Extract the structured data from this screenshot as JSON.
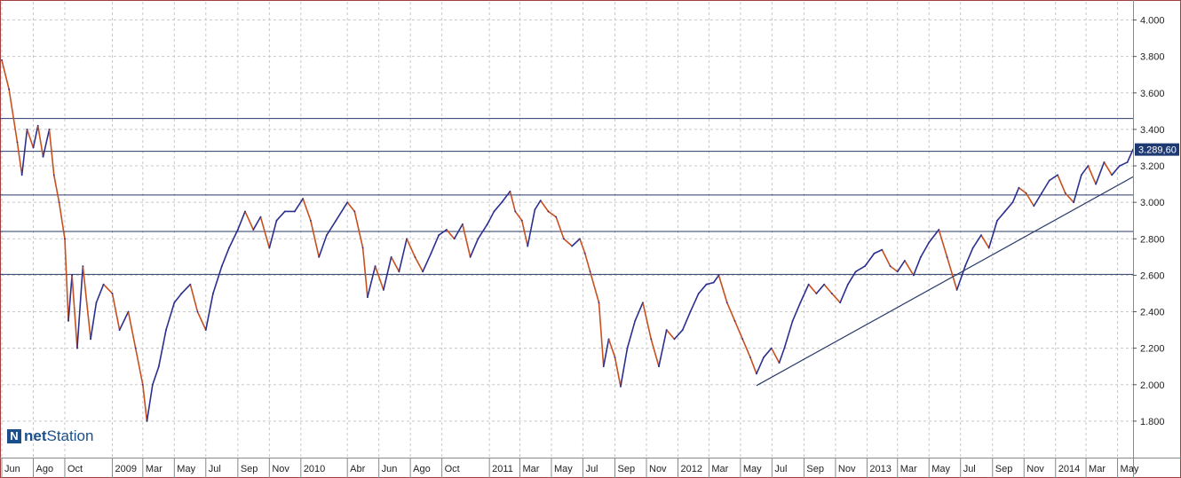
{
  "logo": {
    "mark": "N",
    "text_bold": "net",
    "text_regular": "Station"
  },
  "colors": {
    "price_up": "#2b2f8f",
    "price_down": "#c8501e",
    "level_line": "#2a3a6a",
    "trend_line": "#2a3a6a",
    "grid": "#c8c8c8",
    "border": "#a04040",
    "tag_bg": "#1f3a73",
    "tag_text": "#ffffff"
  },
  "chart_data": {
    "type": "line",
    "title": "",
    "xlabel": "",
    "ylabel": "",
    "x_range": [
      "2008-06-01",
      "2014-05-31"
    ],
    "ylim": [
      1600,
      4100
    ],
    "y_ticks": [
      1800,
      2000,
      2200,
      2400,
      2600,
      2800,
      3000,
      3200,
      3400,
      3600,
      3800,
      4000
    ],
    "y_tick_labels": [
      "1.800",
      "2.000",
      "2.200",
      "2.400",
      "2.600",
      "2.800",
      "3.000",
      "3.200",
      "3.400",
      "3.600",
      "3.800",
      "4.000"
    ],
    "x_ticks": [
      {
        "date": "2008-06-01",
        "label": "Jun"
      },
      {
        "date": "2008-08-01",
        "label": "Ago"
      },
      {
        "date": "2008-10-01",
        "label": "Oct"
      },
      {
        "date": "2009-01-01",
        "label": "2009"
      },
      {
        "date": "2009-03-01",
        "label": "Mar"
      },
      {
        "date": "2009-05-01",
        "label": "May"
      },
      {
        "date": "2009-07-01",
        "label": "Jul"
      },
      {
        "date": "2009-09-01",
        "label": "Sep"
      },
      {
        "date": "2009-11-01",
        "label": "Nov"
      },
      {
        "date": "2010-01-01",
        "label": "2010"
      },
      {
        "date": "2010-04-01",
        "label": "Abr"
      },
      {
        "date": "2010-06-01",
        "label": "Jun"
      },
      {
        "date": "2010-08-01",
        "label": "Ago"
      },
      {
        "date": "2010-10-01",
        "label": "Oct"
      },
      {
        "date": "2011-01-01",
        "label": "2011"
      },
      {
        "date": "2011-03-01",
        "label": "Mar"
      },
      {
        "date": "2011-05-01",
        "label": "May"
      },
      {
        "date": "2011-07-01",
        "label": "Jul"
      },
      {
        "date": "2011-09-01",
        "label": "Sep"
      },
      {
        "date": "2011-11-01",
        "label": "Nov"
      },
      {
        "date": "2012-01-01",
        "label": "2012"
      },
      {
        "date": "2012-03-01",
        "label": "Mar"
      },
      {
        "date": "2012-05-01",
        "label": "May"
      },
      {
        "date": "2012-07-01",
        "label": "Jul"
      },
      {
        "date": "2012-09-01",
        "label": "Sep"
      },
      {
        "date": "2012-11-01",
        "label": "Nov"
      },
      {
        "date": "2013-01-01",
        "label": "2013"
      },
      {
        "date": "2013-03-01",
        "label": "Mar"
      },
      {
        "date": "2013-05-01",
        "label": "May"
      },
      {
        "date": "2013-07-01",
        "label": "Jul"
      },
      {
        "date": "2013-09-01",
        "label": "Sep"
      },
      {
        "date": "2013-11-01",
        "label": "Nov"
      },
      {
        "date": "2014-01-01",
        "label": "2014"
      },
      {
        "date": "2014-03-01",
        "label": "Mar"
      },
      {
        "date": "2014-05-01",
        "label": "May"
      }
    ],
    "grid": true,
    "horizontal_levels": [
      3460,
      3280,
      3040,
      2840,
      2605
    ],
    "trend_line": {
      "start": [
        "2012-06-01",
        1995
      ],
      "end": [
        "2014-05-31",
        3140
      ]
    },
    "last_value": 3289.6,
    "last_value_label": "3.289,60",
    "series": [
      {
        "points": [
          [
            "2008-06-01",
            3780
          ],
          [
            "2008-06-15",
            3620
          ],
          [
            "2008-07-01",
            3330
          ],
          [
            "2008-07-10",
            3150
          ],
          [
            "2008-07-20",
            3400
          ],
          [
            "2008-08-01",
            3300
          ],
          [
            "2008-08-10",
            3420
          ],
          [
            "2008-08-20",
            3250
          ],
          [
            "2008-09-01",
            3400
          ],
          [
            "2008-09-10",
            3150
          ],
          [
            "2008-09-20",
            3000
          ],
          [
            "2008-10-01",
            2800
          ],
          [
            "2008-10-08",
            2350
          ],
          [
            "2008-10-15",
            2600
          ],
          [
            "2008-10-25",
            2200
          ],
          [
            "2008-11-05",
            2650
          ],
          [
            "2008-11-20",
            2250
          ],
          [
            "2008-12-01",
            2450
          ],
          [
            "2008-12-15",
            2550
          ],
          [
            "2009-01-01",
            2500
          ],
          [
            "2009-01-15",
            2300
          ],
          [
            "2009-02-01",
            2400
          ],
          [
            "2009-02-15",
            2200
          ],
          [
            "2009-03-01",
            2000
          ],
          [
            "2009-03-09",
            1800
          ],
          [
            "2009-03-20",
            2000
          ],
          [
            "2009-04-01",
            2100
          ],
          [
            "2009-04-15",
            2300
          ],
          [
            "2009-05-01",
            2450
          ],
          [
            "2009-05-15",
            2500
          ],
          [
            "2009-06-01",
            2550
          ],
          [
            "2009-06-15",
            2400
          ],
          [
            "2009-07-01",
            2300
          ],
          [
            "2009-07-15",
            2500
          ],
          [
            "2009-08-01",
            2650
          ],
          [
            "2009-08-15",
            2750
          ],
          [
            "2009-09-01",
            2850
          ],
          [
            "2009-09-15",
            2950
          ],
          [
            "2009-10-01",
            2850
          ],
          [
            "2009-10-15",
            2920
          ],
          [
            "2009-11-01",
            2750
          ],
          [
            "2009-11-15",
            2900
          ],
          [
            "2009-12-01",
            2950
          ],
          [
            "2009-12-20",
            2950
          ],
          [
            "2010-01-05",
            3020
          ],
          [
            "2010-01-20",
            2900
          ],
          [
            "2010-02-05",
            2700
          ],
          [
            "2010-02-20",
            2820
          ],
          [
            "2010-03-10",
            2900
          ],
          [
            "2010-04-01",
            3000
          ],
          [
            "2010-04-15",
            2950
          ],
          [
            "2010-05-01",
            2750
          ],
          [
            "2010-05-10",
            2480
          ],
          [
            "2010-05-25",
            2650
          ],
          [
            "2010-06-10",
            2520
          ],
          [
            "2010-06-25",
            2700
          ],
          [
            "2010-07-10",
            2620
          ],
          [
            "2010-07-25",
            2800
          ],
          [
            "2010-08-10",
            2700
          ],
          [
            "2010-08-25",
            2620
          ],
          [
            "2010-09-10",
            2720
          ],
          [
            "2010-09-25",
            2820
          ],
          [
            "2010-10-10",
            2850
          ],
          [
            "2010-10-25",
            2800
          ],
          [
            "2010-11-10",
            2880
          ],
          [
            "2010-11-25",
            2700
          ],
          [
            "2010-12-10",
            2800
          ],
          [
            "2010-12-28",
            2880
          ],
          [
            "2011-01-10",
            2950
          ],
          [
            "2011-01-25",
            3000
          ],
          [
            "2011-02-10",
            3060
          ],
          [
            "2011-02-20",
            2950
          ],
          [
            "2011-03-05",
            2900
          ],
          [
            "2011-03-16",
            2760
          ],
          [
            "2011-03-30",
            2960
          ],
          [
            "2011-04-10",
            3010
          ],
          [
            "2011-04-25",
            2950
          ],
          [
            "2011-05-10",
            2920
          ],
          [
            "2011-05-25",
            2800
          ],
          [
            "2011-06-10",
            2760
          ],
          [
            "2011-06-25",
            2800
          ],
          [
            "2011-07-05",
            2720
          ],
          [
            "2011-07-15",
            2620
          ],
          [
            "2011-08-01",
            2450
          ],
          [
            "2011-08-10",
            2100
          ],
          [
            "2011-08-20",
            2250
          ],
          [
            "2011-09-01",
            2150
          ],
          [
            "2011-09-12",
            1990
          ],
          [
            "2011-09-25",
            2200
          ],
          [
            "2011-10-10",
            2350
          ],
          [
            "2011-10-25",
            2450
          ],
          [
            "2011-11-10",
            2250
          ],
          [
            "2011-11-25",
            2100
          ],
          [
            "2011-12-10",
            2300
          ],
          [
            "2011-12-25",
            2250
          ],
          [
            "2012-01-10",
            2300
          ],
          [
            "2012-01-25",
            2400
          ],
          [
            "2012-02-10",
            2500
          ],
          [
            "2012-02-25",
            2550
          ],
          [
            "2012-03-10",
            2560
          ],
          [
            "2012-03-20",
            2600
          ],
          [
            "2012-04-05",
            2450
          ],
          [
            "2012-04-20",
            2350
          ],
          [
            "2012-05-05",
            2250
          ],
          [
            "2012-05-20",
            2150
          ],
          [
            "2012-06-01",
            2060
          ],
          [
            "2012-06-15",
            2150
          ],
          [
            "2012-06-30",
            2200
          ],
          [
            "2012-07-15",
            2120
          ],
          [
            "2012-07-25",
            2200
          ],
          [
            "2012-08-10",
            2350
          ],
          [
            "2012-08-25",
            2450
          ],
          [
            "2012-09-10",
            2550
          ],
          [
            "2012-09-25",
            2500
          ],
          [
            "2012-10-10",
            2550
          ],
          [
            "2012-10-25",
            2500
          ],
          [
            "2012-11-10",
            2450
          ],
          [
            "2012-11-25",
            2550
          ],
          [
            "2012-12-10",
            2620
          ],
          [
            "2012-12-28",
            2650
          ],
          [
            "2013-01-15",
            2720
          ],
          [
            "2013-01-30",
            2740
          ],
          [
            "2013-02-15",
            2650
          ],
          [
            "2013-03-01",
            2620
          ],
          [
            "2013-03-15",
            2680
          ],
          [
            "2013-04-01",
            2600
          ],
          [
            "2013-04-15",
            2700
          ],
          [
            "2013-05-01",
            2780
          ],
          [
            "2013-05-20",
            2850
          ],
          [
            "2013-06-05",
            2700
          ],
          [
            "2013-06-24",
            2520
          ],
          [
            "2013-07-10",
            2650
          ],
          [
            "2013-07-25",
            2750
          ],
          [
            "2013-08-10",
            2820
          ],
          [
            "2013-08-25",
            2750
          ],
          [
            "2013-09-10",
            2900
          ],
          [
            "2013-09-25",
            2950
          ],
          [
            "2013-10-10",
            3000
          ],
          [
            "2013-10-22",
            3080
          ],
          [
            "2013-11-05",
            3050
          ],
          [
            "2013-11-20",
            2980
          ],
          [
            "2013-12-05",
            3050
          ],
          [
            "2013-12-20",
            3120
          ],
          [
            "2014-01-05",
            3150
          ],
          [
            "2014-01-20",
            3050
          ],
          [
            "2014-02-05",
            3000
          ],
          [
            "2014-02-20",
            3150
          ],
          [
            "2014-03-05",
            3200
          ],
          [
            "2014-03-20",
            3100
          ],
          [
            "2014-04-05",
            3220
          ],
          [
            "2014-04-20",
            3150
          ],
          [
            "2014-05-05",
            3200
          ],
          [
            "2014-05-20",
            3220
          ],
          [
            "2014-05-31",
            3290
          ]
        ]
      }
    ]
  }
}
